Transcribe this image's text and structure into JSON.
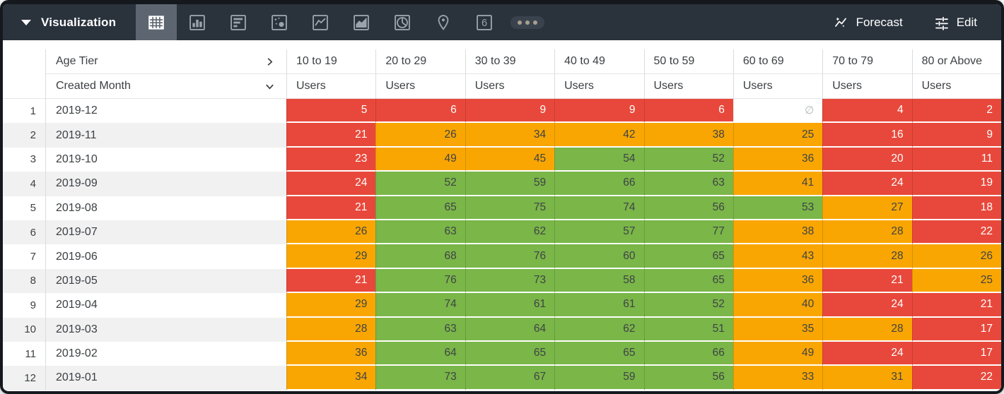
{
  "toolbar": {
    "visualization_label": "Visualization",
    "forecast_label": "Forecast",
    "edit_label": "Edit",
    "viz_icons": [
      {
        "name": "table",
        "selected": true
      },
      {
        "name": "column-chart",
        "selected": false
      },
      {
        "name": "bar-chart",
        "selected": false
      },
      {
        "name": "scatter-plot",
        "selected": false
      },
      {
        "name": "line-chart",
        "selected": false
      },
      {
        "name": "area-chart",
        "selected": false
      },
      {
        "name": "pie-chart",
        "selected": false
      },
      {
        "name": "map",
        "selected": false
      },
      {
        "name": "single-value",
        "selected": false
      },
      {
        "name": "more-viz-types",
        "selected": false
      }
    ],
    "single_value_icon_text": "6"
  },
  "table": {
    "pivot_field": "Age Tier",
    "row_field": "Created Month",
    "measure_label": "Users",
    "columns": [
      "10 to 19",
      "20 to 29",
      "30 to 39",
      "40 to 49",
      "50 to 59",
      "60 to 69",
      "70 to 79",
      "80 or Above"
    ],
    "null_symbol": "∅",
    "rows": [
      {
        "index": 1,
        "month": "2019-12",
        "values": [
          5,
          6,
          9,
          9,
          6,
          null,
          4,
          2
        ]
      },
      {
        "index": 2,
        "month": "2019-11",
        "values": [
          21,
          26,
          34,
          42,
          38,
          25,
          16,
          9
        ]
      },
      {
        "index": 3,
        "month": "2019-10",
        "values": [
          23,
          49,
          45,
          54,
          52,
          36,
          20,
          11
        ]
      },
      {
        "index": 4,
        "month": "2019-09",
        "values": [
          24,
          52,
          59,
          66,
          63,
          41,
          24,
          19
        ]
      },
      {
        "index": 5,
        "month": "2019-08",
        "values": [
          21,
          65,
          75,
          74,
          56,
          53,
          27,
          18
        ]
      },
      {
        "index": 6,
        "month": "2019-07",
        "values": [
          26,
          63,
          62,
          57,
          77,
          38,
          28,
          22
        ]
      },
      {
        "index": 7,
        "month": "2019-06",
        "values": [
          29,
          68,
          76,
          60,
          65,
          43,
          28,
          26
        ]
      },
      {
        "index": 8,
        "month": "2019-05",
        "values": [
          21,
          76,
          73,
          58,
          65,
          36,
          21,
          25
        ]
      },
      {
        "index": 9,
        "month": "2019-04",
        "values": [
          29,
          74,
          61,
          61,
          52,
          40,
          24,
          21
        ]
      },
      {
        "index": 10,
        "month": "2019-03",
        "values": [
          28,
          63,
          64,
          62,
          51,
          35,
          28,
          17
        ]
      },
      {
        "index": 11,
        "month": "2019-02",
        "values": [
          36,
          64,
          65,
          65,
          66,
          49,
          24,
          17
        ]
      },
      {
        "index": 12,
        "month": "2019-01",
        "values": [
          34,
          73,
          67,
          59,
          56,
          33,
          31,
          22
        ]
      }
    ]
  },
  "formatting": {
    "red": "#e8483b",
    "orange": "#f9a602",
    "green": "#7ab648",
    "red_max": 24,
    "orange_max": 49
  }
}
